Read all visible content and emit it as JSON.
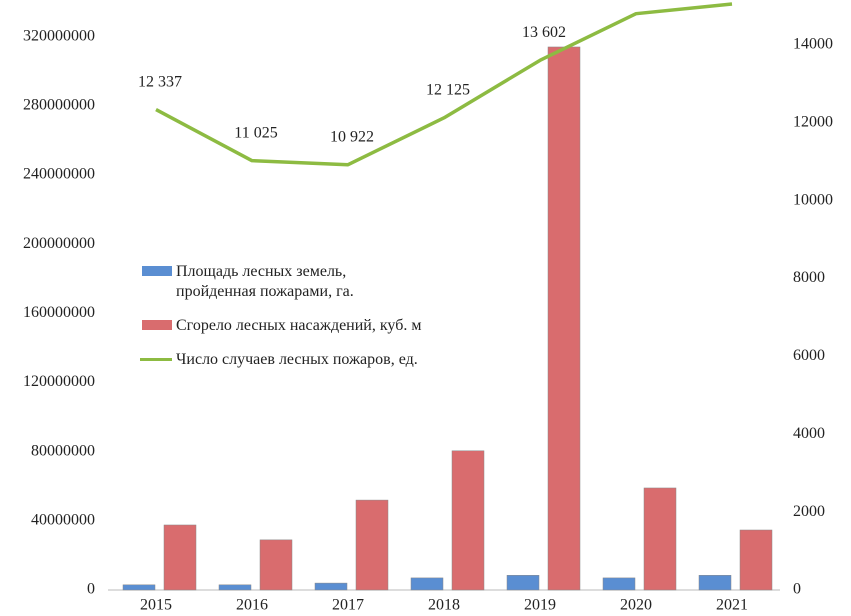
{
  "chart_data": {
    "type": "bar",
    "categories": [
      "2015",
      "2016",
      "2017",
      "2018",
      "2019",
      "2020",
      "2021"
    ],
    "series": [
      {
        "name": "Площадь лесных земель, пройденная пожарами, га.",
        "color": "#5a8ed2",
        "type": "bar",
        "values": [
          3000000,
          3000000,
          4000000,
          7000000,
          8500000,
          7000000,
          8500000
        ]
      },
      {
        "name": "Сгорело лесных насаждений, куб. м",
        "color": "#d96c6e",
        "type": "bar",
        "values": [
          37600000,
          29000000,
          52000000,
          80500000,
          314000000,
          59000000,
          34700000
        ]
      },
      {
        "name": "Число случаев лесных пожаров, ед.",
        "color": "#8dbb42",
        "type": "line",
        "axis": "y2",
        "values": [
          12337,
          11025,
          10922,
          12125,
          13602,
          14800,
          15050
        ],
        "value_labels": [
          "12 337",
          "11 025",
          "10 922",
          "12 125",
          "13 602",
          null,
          null
        ]
      }
    ],
    "ylim": [
      0,
      340000000
    ],
    "yticks": [
      0,
      40000000,
      80000000,
      120000000,
      160000000,
      200000000,
      240000000,
      280000000,
      320000000
    ],
    "y2lim": [
      0,
      15100
    ],
    "y2ticks": [
      0,
      2000,
      4000,
      6000,
      8000,
      10000,
      12000,
      14000
    ]
  }
}
